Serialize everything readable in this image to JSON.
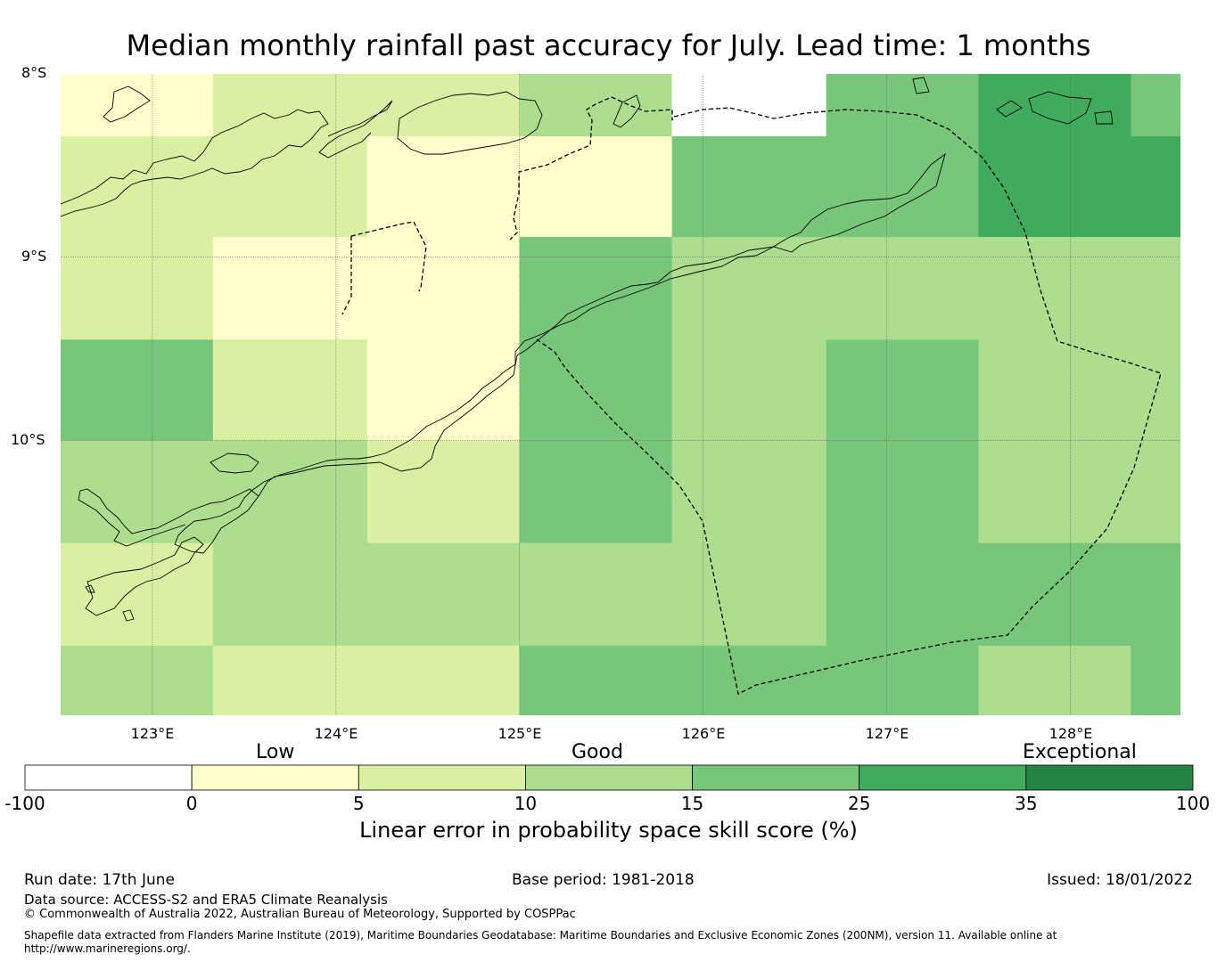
{
  "title": "Median monthly rainfall past accuracy for July. Lead time: 1 months",
  "lat_labels": [
    "8°S",
    "9°S",
    "10°S"
  ],
  "lon_labels": [
    "123°E",
    "124°E",
    "125°E",
    "126°E",
    "127°E",
    "128°E"
  ],
  "map": {
    "lon_range": [
      122.5,
      128.6
    ],
    "lat_range": [
      -11.5,
      -8.0
    ],
    "gridlines": true,
    "lon_edges": [
      122.5,
      123.33,
      124.17,
      125.0,
      125.83,
      126.67,
      127.5,
      128.33,
      128.6
    ],
    "lat_edges": [
      -8.0,
      -8.34,
      -8.89,
      -9.45,
      -10.0,
      -10.56,
      -11.12,
      -11.5
    ],
    "skill_grid": [
      [
        2,
        7,
        7,
        12,
        null,
        20,
        30,
        20
      ],
      [
        7,
        7,
        2,
        2,
        20,
        20,
        30,
        30
      ],
      [
        7,
        2,
        2,
        20,
        12,
        12,
        12,
        12
      ],
      [
        20,
        7,
        2,
        20,
        12,
        20,
        12,
        12
      ],
      [
        12,
        12,
        7,
        20,
        12,
        20,
        12,
        12
      ],
      [
        7,
        12,
        12,
        12,
        12,
        20,
        20,
        20
      ],
      [
        12,
        7,
        7,
        20,
        20,
        20,
        12,
        20
      ]
    ]
  },
  "colorbar": {
    "boundaries": [
      -100,
      0,
      5,
      10,
      15,
      25,
      35,
      100
    ],
    "colors": [
      "#ffffff",
      "#ffffcc",
      "#d9f0a3",
      "#addd8e",
      "#78c679",
      "#41ab5d",
      "#238443"
    ],
    "tick_labels": [
      "-100",
      "0",
      "5",
      "10",
      "15",
      "25",
      "35",
      "100"
    ],
    "categories": [
      "Low",
      "Good",
      "Exceptional"
    ],
    "label": "Linear error in probability space skill score (%)"
  },
  "footer": {
    "run_date": "Run date: 17th June",
    "base_period": "Base period: 1981-2018",
    "issued": "Issued: 18/01/2022",
    "data_source": "Data source: ACCESS-S2 and ERA5 Climate Reanalysis",
    "copyright": "© Commonwealth of Australia 2022, Australian Bureau of Meteorology, Supported by COSPPac",
    "shapefile": "Shapefile data extracted from Flanders Marine Institute (2019), Maritime Boundaries Geodatabase: Maritime Boundaries and Exclusive Economic Zones (200NM), version 11. Available online at http://www.marineregions.org/."
  }
}
